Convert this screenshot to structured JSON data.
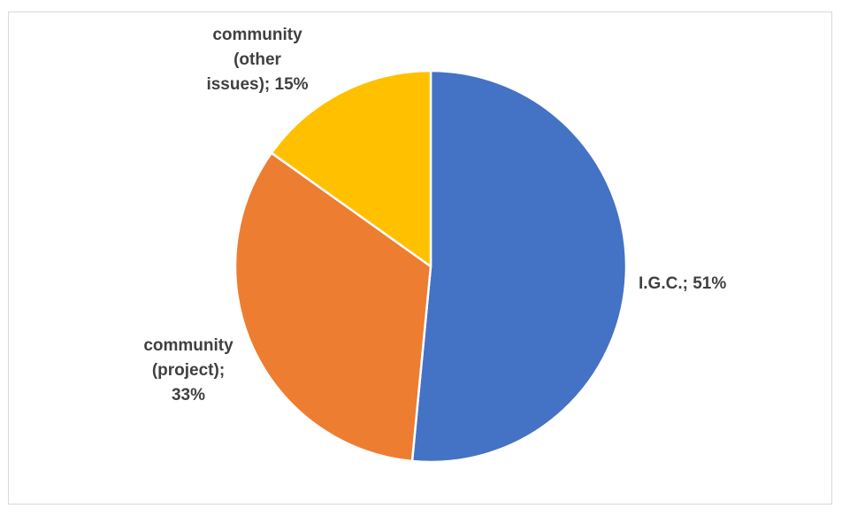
{
  "chart_data": {
    "type": "pie",
    "title": "",
    "slices": [
      {
        "name": "I.G.C.",
        "value": 51,
        "label": "I.G.C.; 51%",
        "color": "#4472C4"
      },
      {
        "name": "community (project)",
        "value": 33,
        "label": "community (project); 33%",
        "color": "#ED7D31"
      },
      {
        "name": "community (other issues)",
        "value": 15,
        "label": "community (other issues); 15%",
        "color": "#FFC000"
      }
    ],
    "legend": "none"
  }
}
